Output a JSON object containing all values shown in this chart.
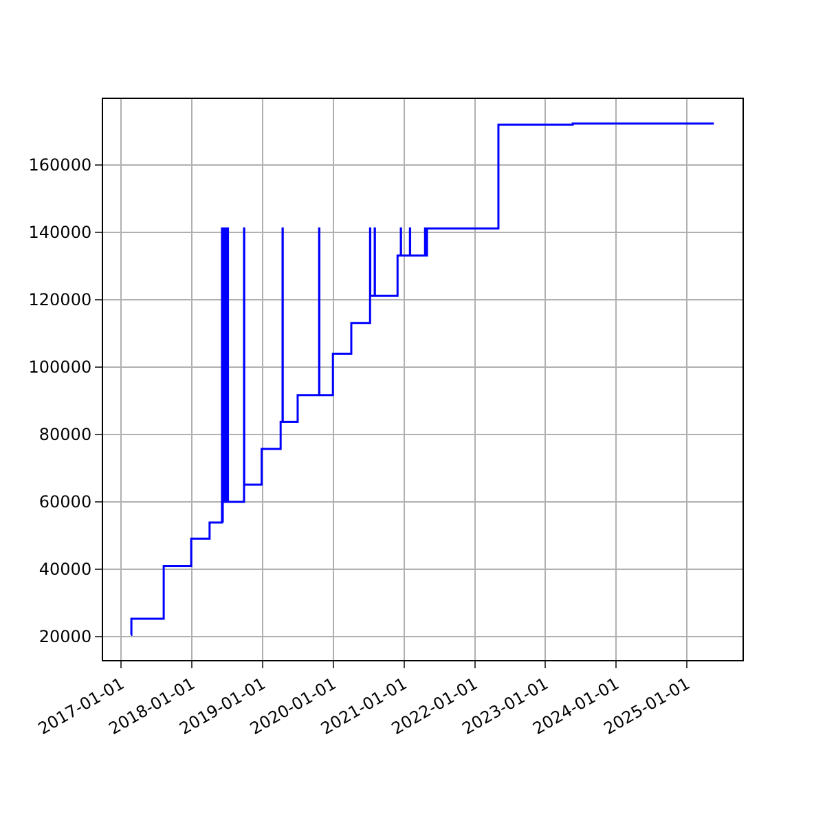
{
  "chart_data": {
    "type": "step",
    "color": "#0000ff",
    "grid": true,
    "line_style": "solid",
    "x": [
      "2017-02-21",
      "2017-02-22",
      "2017-08-08",
      "2017-12-28",
      "2018-04-02",
      "2018-06-05",
      "2018-06-07",
      "2018-06-09",
      "2018-06-12",
      "2018-06-15",
      "2018-06-18",
      "2018-06-21",
      "2018-06-24",
      "2018-06-27",
      "2018-06-30",
      "2018-07-03",
      "2018-07-06",
      "2018-09-27",
      "2018-09-28",
      "2018-12-27",
      "2019-04-04",
      "2019-04-14",
      "2019-04-15",
      "2019-07-01",
      "2019-10-20",
      "2019-10-21",
      "2019-12-30",
      "2020-04-03",
      "2020-07-09",
      "2020-07-10",
      "2020-08-02",
      "2020-08-03",
      "2020-11-28",
      "2020-12-15",
      "2020-12-16",
      "2021-01-31",
      "2021-02-01",
      "2021-04-19",
      "2021-04-20",
      "2021-04-29",
      "2022-05-03",
      "2023-05-22",
      "2025-05-20"
    ],
    "values": [
      20500,
      25300,
      40900,
      49100,
      53900,
      141200,
      54200,
      141200,
      60000,
      141200,
      60000,
      141200,
      60000,
      141200,
      60000,
      141200,
      60000,
      141200,
      65100,
      75700,
      83800,
      141200,
      83800,
      91700,
      141200,
      91700,
      104000,
      113100,
      141200,
      121200,
      141200,
      121200,
      133100,
      141200,
      133100,
      141200,
      133100,
      141200,
      133100,
      141200,
      172000,
      172300,
      172300
    ],
    "xlim": [
      "2016-09-29",
      "2025-10-15"
    ],
    "xticks": [
      "2017-01-01",
      "2018-01-01",
      "2019-01-01",
      "2020-01-01",
      "2021-01-01",
      "2022-01-01",
      "2023-01-01",
      "2024-01-01",
      "2025-01-01"
    ],
    "ylim": [
      13060,
      179600
    ],
    "yticks": [
      20000,
      40000,
      60000,
      80000,
      100000,
      120000,
      140000,
      160000
    ]
  }
}
